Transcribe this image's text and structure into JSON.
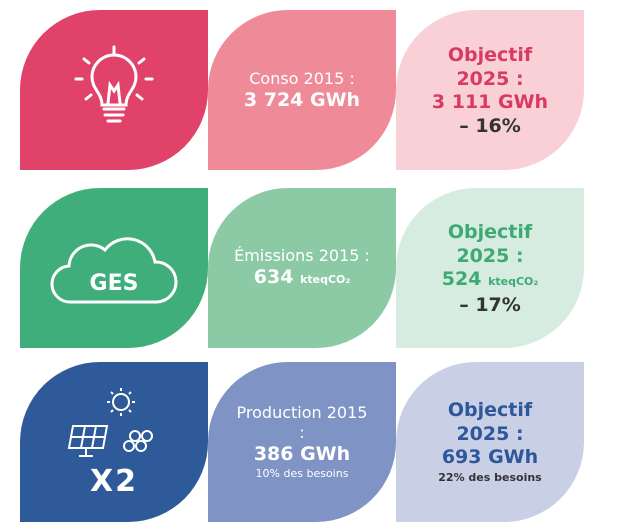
{
  "rows": [
    {
      "current": {
        "label": "Conso 2015 :",
        "value": "3 724 GWh"
      },
      "target": {
        "label": "Objectif 2025 :",
        "value": "3 111 GWh",
        "change": "– 16%"
      }
    },
    {
      "icon_label": "GES",
      "current": {
        "label": "Émissions 2015 :",
        "value": "634",
        "unit": "kteqCO₂"
      },
      "target": {
        "label": "Objectif 2025 :",
        "value": "524",
        "unit": "kteqCO₂",
        "change": "– 17%"
      }
    },
    {
      "icon_label": "X2",
      "current": {
        "label": "Production 2015 :",
        "value": "386 GWh",
        "note": "10% des besoins"
      },
      "target": {
        "label": "Objectif 2025 :",
        "value": "693 GWh",
        "note": "22% des besoins"
      }
    }
  ]
}
